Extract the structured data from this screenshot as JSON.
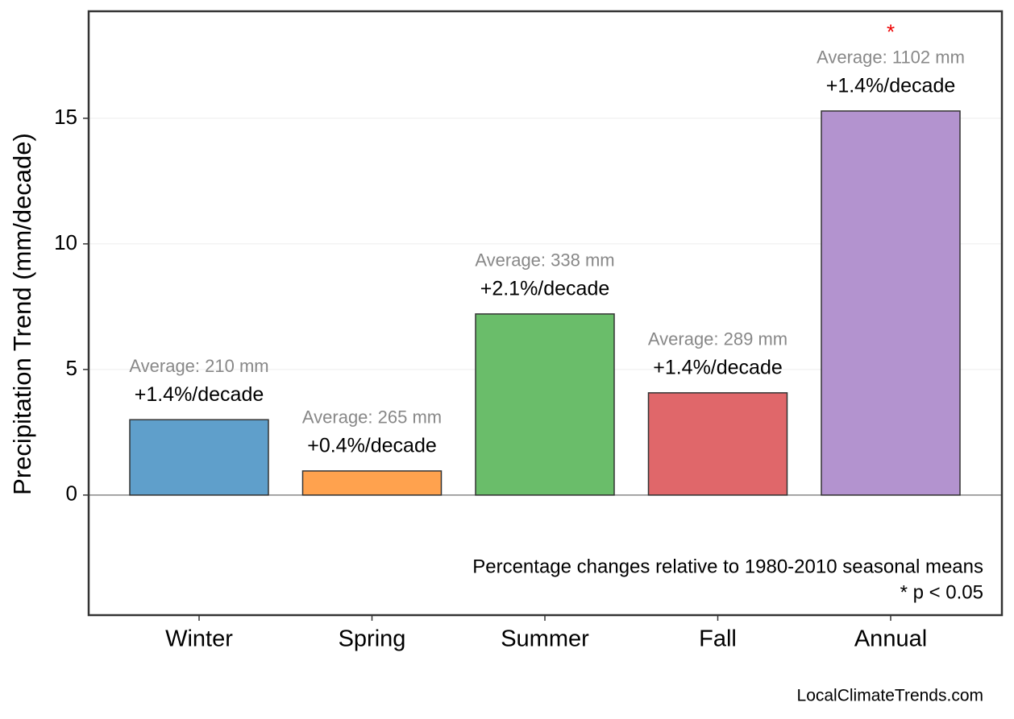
{
  "chart_data": {
    "type": "bar",
    "y_label": "Precipitation Trend (mm/decade)",
    "categories": [
      "Winter",
      "Spring",
      "Summer",
      "Fall",
      "Annual"
    ],
    "values": [
      3.0,
      0.96,
      7.21,
      4.07,
      15.29
    ],
    "colors": [
      "#5f9fcb",
      "#ffa24e",
      "#6abd6a",
      "#e0676a",
      "#b393cf"
    ],
    "pct_labels": [
      "+1.4%/decade",
      "+0.4%/decade",
      "+2.1%/decade",
      "+1.4%/decade",
      "+1.4%/decade"
    ],
    "avg_labels": [
      "Average: 210 mm",
      "Average: 265 mm",
      "Average: 338 mm",
      "Average: 289 mm",
      "Average: 1102 mm"
    ],
    "significance": [
      null,
      null,
      null,
      null,
      "*"
    ],
    "ylim": [
      -4.78,
      19.26
    ],
    "yticks": [
      0,
      5,
      10,
      15
    ],
    "grid": true,
    "footnote": [
      "Percentage changes relative to 1980-2010 seasonal means",
      "* p < 0.05"
    ],
    "source": "LocalClimateTrends.com"
  }
}
